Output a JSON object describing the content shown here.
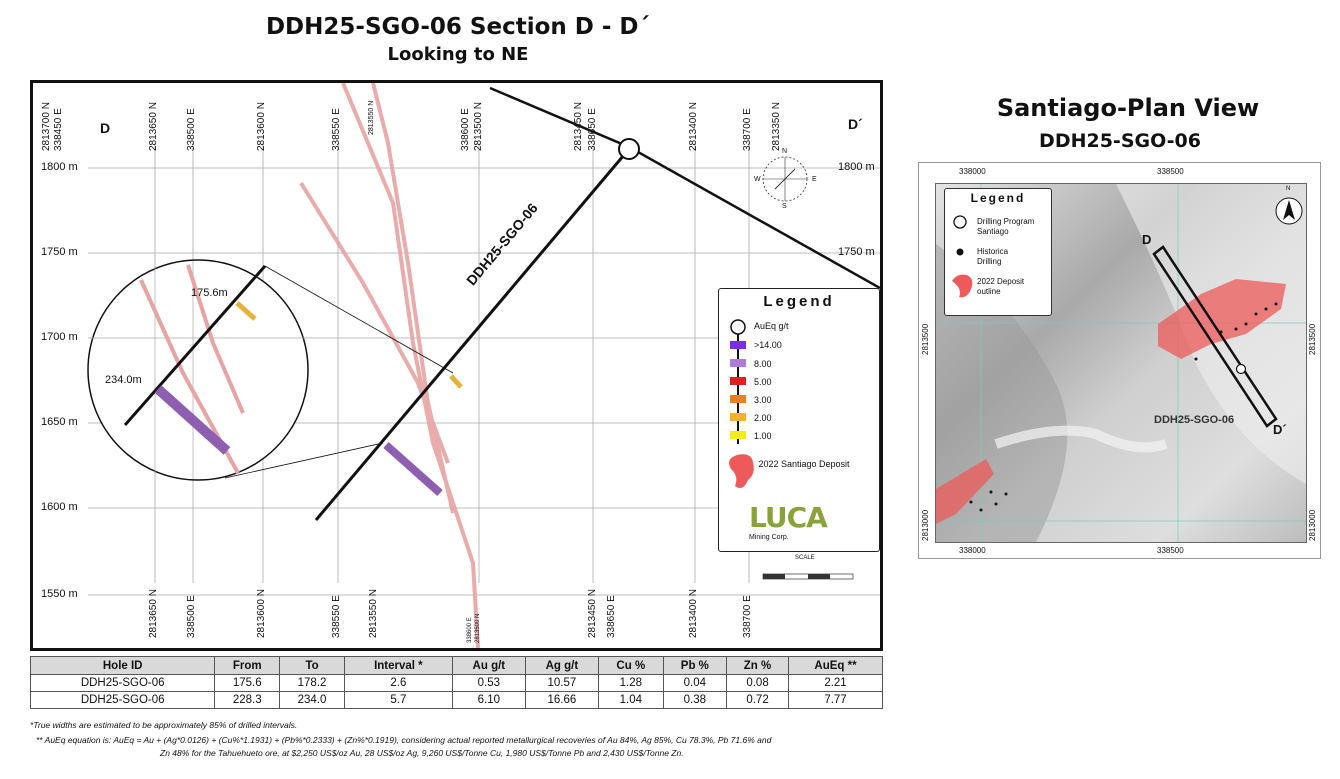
{
  "section": {
    "title": "DDH25-SGO-06 Section D - D´",
    "subtitle": "Looking to NE",
    "label_left": "D",
    "label_right": "D´",
    "hole_label": "DDH25-SGO-06",
    "elevations": [
      "1800 m",
      "1750 m",
      "1700 m",
      "1650 m",
      "1600 m",
      "1550 m"
    ],
    "elev_right": [
      "1800 m",
      "1750 m"
    ],
    "top_ticks": [
      "2813700 N",
      "338450 E",
      "2813650 N",
      "338500 E",
      "2813600 N",
      "338550 E",
      "2813550 N",
      "338600 E",
      "2813500 N",
      "2813450 N",
      "338650 E",
      "2813400 N",
      "338700 E",
      "2813350 N"
    ],
    "bottom_ticks": [
      "2813650 N",
      "338500 E",
      "2813600 N",
      "338550 E",
      "2813550 N",
      "338600 E",
      "2813500 N",
      "2813450 N",
      "338650 E",
      "2813400 N",
      "338700 E"
    ],
    "zoom_labels": [
      "175.6m",
      "234.0m"
    ],
    "compass": [
      "N",
      "E",
      "S",
      "W"
    ],
    "scale_label": "SCALE"
  },
  "legend": {
    "title": "Legend",
    "items": [
      "AuEq g/t",
      ">14.00",
      "8.00",
      "5.00",
      "3.00",
      "2.00",
      "1.00"
    ],
    "deposit": "2022 Santiago Deposit",
    "logo": "LUCA",
    "logo_sub": "Mining Corp."
  },
  "table": {
    "headers": [
      "Hole ID",
      "From",
      "To",
      "Interval *",
      "Au g/t",
      "Ag g/t",
      "Cu %",
      "Pb %",
      "Zn %",
      "AuEq **"
    ],
    "rows": [
      [
        "DDH25-SGO-06",
        "175.6",
        "178.2",
        "2.6",
        "0.53",
        "10.57",
        "1.28",
        "0.04",
        "0.08",
        "2.21"
      ],
      [
        "DDH25-SGO-06",
        "228.3",
        "234.0",
        "5.7",
        "6.10",
        "16.66",
        "1.04",
        "0.38",
        "0.72",
        "7.77"
      ]
    ]
  },
  "footnotes": {
    "f1": "*True widths are estimated to be approximately 85% of drilled intervals.",
    "f2": "** AuEq equation is: AuEq = Au + (Ag*0.0126) + (Cu%*1.1931) + (Pb%*0.2333) + (Zn%*0.1919), considering actual reported metallurgical recoveries of Au 84%, Ag 85%, Cu 78.3%, Pb 71.6% and",
    "f3": "Zn 48% for the Tahuehueto ore, at $2,250 US$/oz Au, 28 US$/oz Ag, 9,260 US$/Tonne Cu, 1,980 US$/Tonne Pb and 2,430 US$/Tonne Zn."
  },
  "plan": {
    "title": "Santiago-Plan View",
    "subtitle": "DDH25-SGO-06",
    "x_ticks": [
      "338000",
      "338500"
    ],
    "y_ticks": [
      "2813500",
      "2813000"
    ],
    "legend_title": "Legend",
    "legend_items": [
      "Drilling Program Santiago",
      "Historica Drilling",
      "2022 Deposit outline"
    ],
    "label_d": "D",
    "label_d2": "D´",
    "hole_label": "DDH25-SGO-06",
    "north": "N"
  },
  "colors": {
    "vein": "#e8a3a3",
    "purple": "#8e5fb0",
    "gold": "#e6b23a",
    "deposit": "#ee5a5a"
  }
}
